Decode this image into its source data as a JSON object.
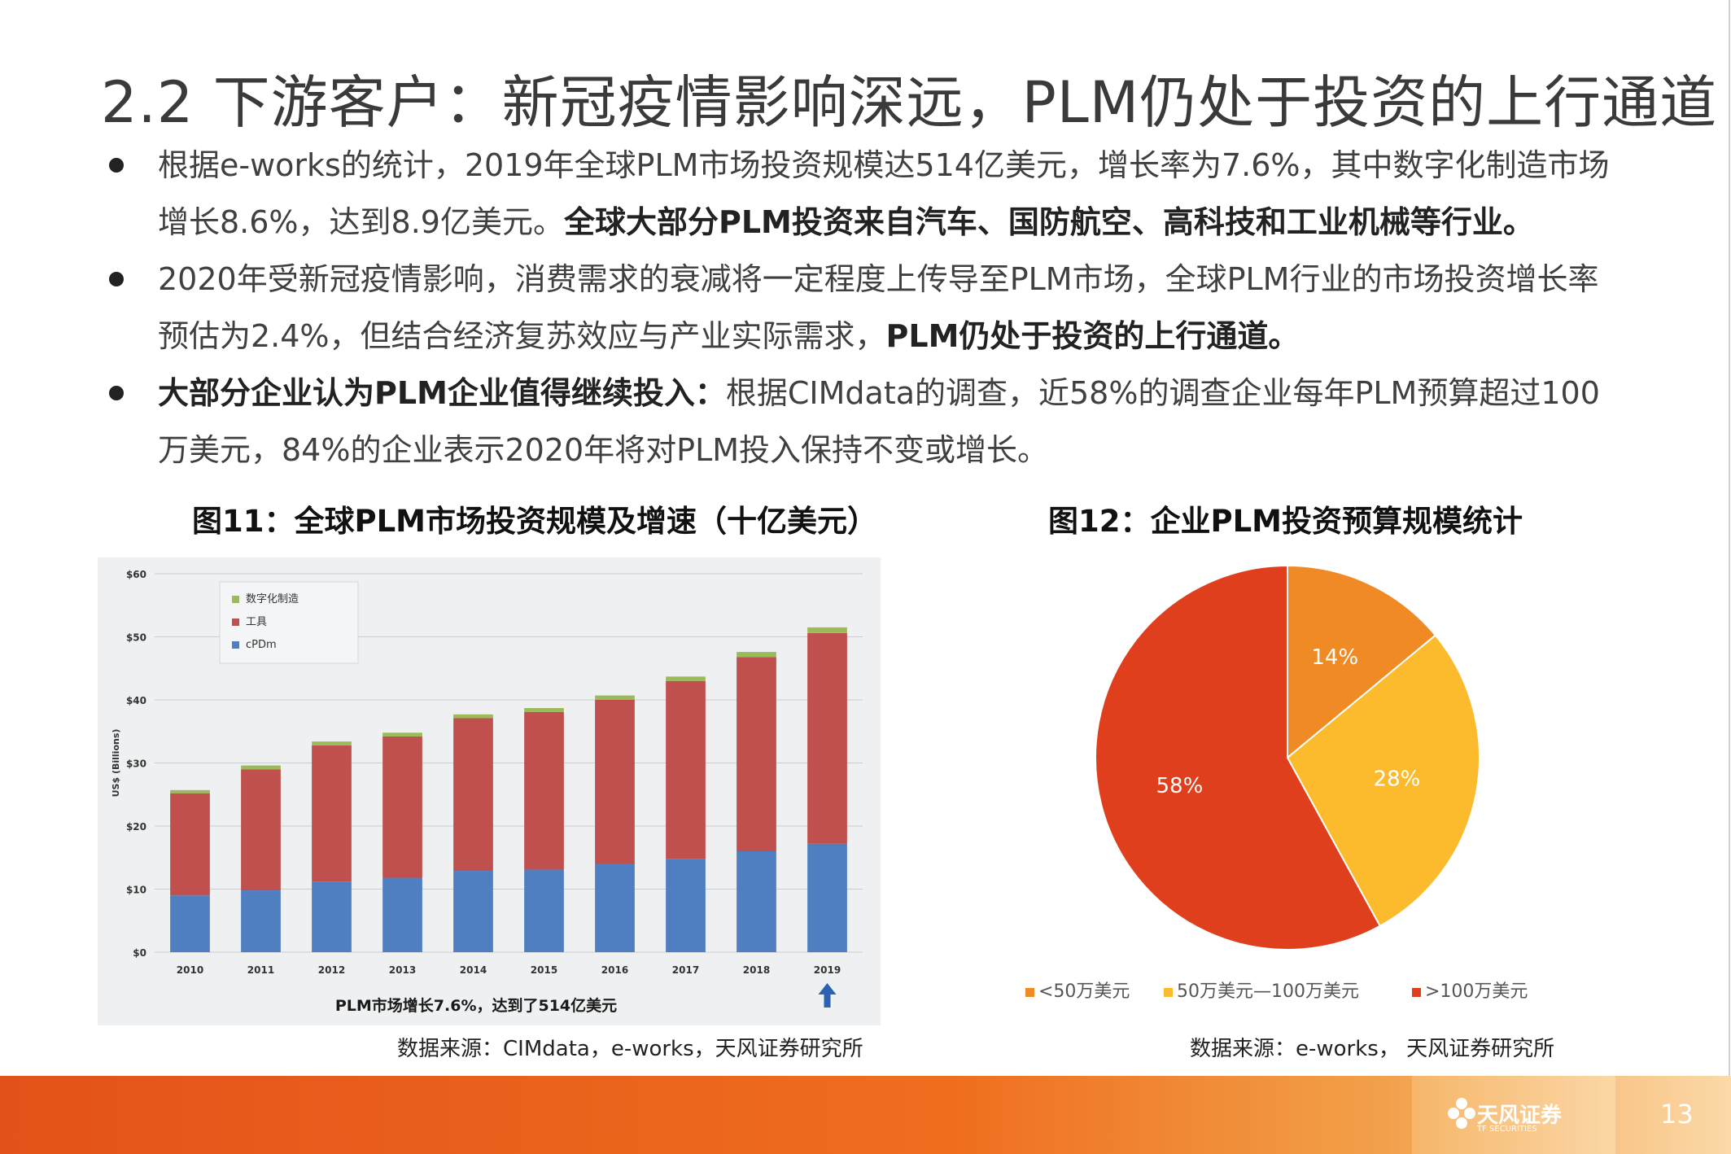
{
  "slide": {
    "title": "2.2 下游客户：新冠疫情影响深远，PLM仍处于投资的上行通道",
    "page_number": "13"
  },
  "bullets": [
    {
      "line1": "根据e-works的统计，2019年全球PLM市场投资规模达514亿美元，增长率为7.6%，其中数字化制造市场",
      "line2_plain": "增长8.6%，达到8.9亿美元。",
      "line2_bold": "全球大部分PLM投资来自汽车、国防航空、高科技和工业机械等行业。"
    },
    {
      "line1": "2020年受新冠疫情影响，消费需求的衰减将一定程度上传导至PLM市场，全球PLM行业的市场投资增长率",
      "line2_plain": "预估为2.4%，但结合经济复苏效应与产业实际需求，",
      "line2_bold": "PLM仍处于投资的上行通道。"
    },
    {
      "line1_bold": "大部分企业认为PLM企业值得继续投入：",
      "line1_plain": "根据CIMdata的调查，近58%的调查企业每年PLM预算超过100",
      "line2_plain": "万美元，84%的企业表示2020年将对PLM投入保持不变或增长。"
    }
  ],
  "figures": {
    "fig11_title": "图11：全球PLM市场投资规模及增速（十亿美元）",
    "fig11_source": "数据来源：CIMdata，e-works，天风证券研究所",
    "fig12_title": "图12：企业PLM投资预算规模统计",
    "fig12_source": "数据来源：e-works，  天风证券研究所"
  },
  "chart_data": [
    {
      "type": "bar",
      "stacked": true,
      "categories": [
        "2010",
        "2011",
        "2012",
        "2013",
        "2014",
        "2015",
        "2016",
        "2017",
        "2018",
        "2019"
      ],
      "series": [
        {
          "name": "cPDm",
          "color": "#4f7fc0",
          "values": [
            9.0,
            9.8,
            11.2,
            11.8,
            12.9,
            13.1,
            14.0,
            14.8,
            16.0,
            17.2
          ]
        },
        {
          "name": "工具",
          "color": "#c0504d",
          "values": [
            16.2,
            19.2,
            21.6,
            22.4,
            24.2,
            25.0,
            26.0,
            28.2,
            30.8,
            33.4
          ]
        },
        {
          "name": "数字化制造",
          "color": "#9bbb59",
          "values": [
            0.5,
            0.6,
            0.6,
            0.6,
            0.6,
            0.6,
            0.7,
            0.7,
            0.8,
            0.9
          ]
        }
      ],
      "ylabel": "US$ (Billions)",
      "ylim": [
        0,
        60
      ],
      "yticks": [
        "$0",
        "$10",
        "$20",
        "$30",
        "$40",
        "$50",
        "$60"
      ],
      "annotation": "PLM市场增长7.6%，达到了514亿美元",
      "legend": "top-left"
    },
    {
      "type": "pie",
      "labels": [
        "<50万美元",
        "50万美元—100万美元",
        ">100万美元"
      ],
      "values": [
        14,
        28,
        58
      ],
      "value_labels": [
        "14%",
        "28%",
        "58%"
      ],
      "colors": [
        "#f08a24",
        "#fbbb2c",
        "#e03f1e"
      ],
      "legend": "bottom"
    }
  ],
  "branding": {
    "logo_name": "天风证券",
    "logo_tagline": "TF SECURITIES"
  }
}
